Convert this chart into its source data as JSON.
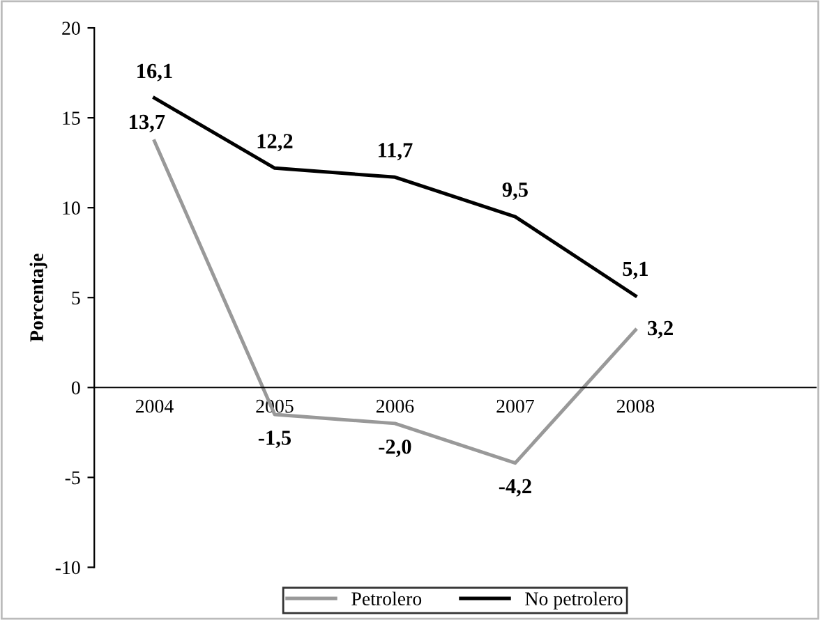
{
  "chart_data": {
    "type": "line",
    "ylabel": "Porcentaje",
    "categories": [
      "2004",
      "2005",
      "2006",
      "2007",
      "2008",
      null
    ],
    "series": [
      {
        "name": "Petrolero",
        "color": "#999999",
        "values": [
          13.7,
          -1.5,
          -2.0,
          -4.2,
          3.2,
          null
        ],
        "value_labels": [
          "13,7",
          "-1,5",
          "-2,0",
          "-4,2",
          "3,2",
          null
        ]
      },
      {
        "name": "No petrolero",
        "color": "#000000",
        "values": [
          16.1,
          12.2,
          11.7,
          9.5,
          5.1,
          null
        ],
        "value_labels": [
          "16,1",
          "12,2",
          "11,7",
          "9,5",
          "5,1",
          null
        ]
      }
    ],
    "ylim": [
      -10,
      20
    ],
    "yticks": [
      -10,
      -5,
      0,
      5,
      10,
      15,
      20
    ],
    "grid": false,
    "legend": "bottom",
    "marker": "none",
    "line_style": "solid"
  }
}
